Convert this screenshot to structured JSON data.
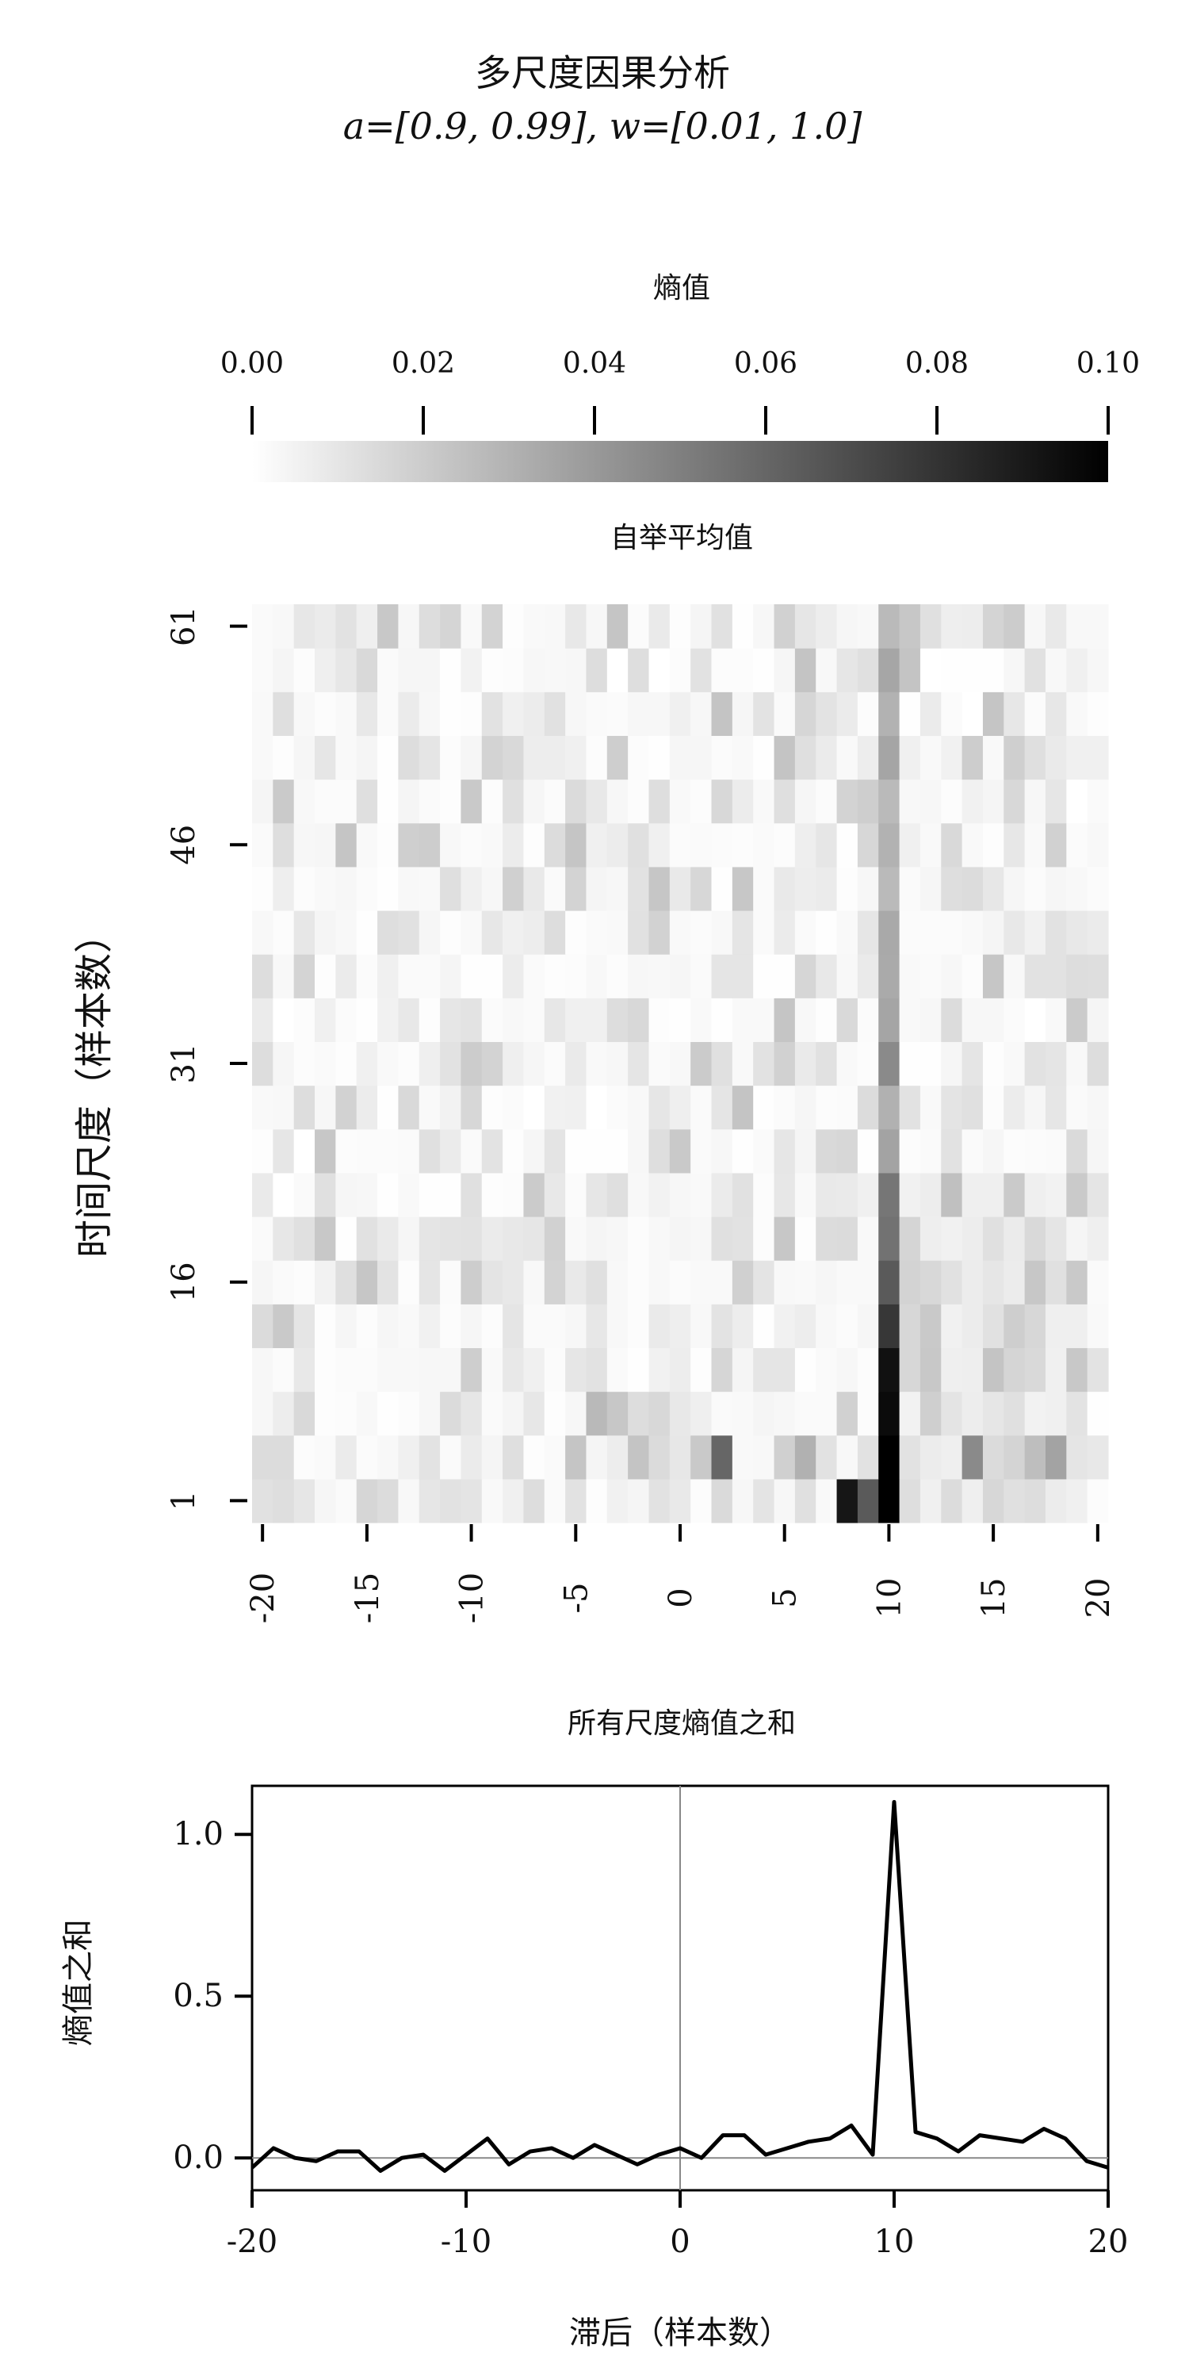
{
  "chart_data": [
    {
      "type": "heatmap",
      "title": "多尺度因果分析",
      "subtitle": "a=[0.9, 0.99], w=[0.01, 1.0]",
      "panel_title": "自举平均值",
      "xlabel": "",
      "ylabel": "时间尺度（样本数）",
      "x_range": [
        -20,
        20
      ],
      "y_range": [
        1,
        61
      ],
      "x_ticks": [
        "-20",
        "-15",
        "-10",
        "-5",
        "0",
        "5",
        "10",
        "15",
        "20"
      ],
      "y_ticks": [
        "1",
        "16",
        "31",
        "46",
        "61"
      ],
      "colorbar": {
        "label": "熵值",
        "min": 0.0,
        "max": 0.1,
        "ticks": [
          "0.00",
          "0.02",
          "0.04",
          "0.06",
          "0.08",
          "0.10"
        ],
        "location": "top",
        "colormap": "white-to-black"
      },
      "highlights": [
        {
          "lag": 10,
          "scale_band": 1,
          "value": 0.1
        },
        {
          "lag": 10,
          "scale_band": 2,
          "value": 0.1
        },
        {
          "lag": 10,
          "scale_band": 3,
          "value": 0.095
        },
        {
          "lag": 10,
          "scale_band": 4,
          "value": 0.092
        },
        {
          "lag": 10,
          "scale_band": 5,
          "value": 0.075
        },
        {
          "lag": 10,
          "scale_band": 6,
          "value": 0.06
        },
        {
          "lag": 10,
          "scale_band": 7,
          "value": 0.05
        },
        {
          "lag": 10,
          "scale_band": 8,
          "value": 0.048
        },
        {
          "lag": 10,
          "scale_band": 9,
          "value": 0.03
        },
        {
          "lag": 10,
          "scale_band": 10,
          "value": 0.025
        },
        {
          "lag": 10,
          "scale_band": 11,
          "value": 0.04
        },
        {
          "lag": 8,
          "scale_band": 1,
          "value": 0.09
        },
        {
          "lag": 9,
          "scale_band": 1,
          "value": 0.06
        },
        {
          "lag": 2,
          "scale_band": 2,
          "value": 0.055
        },
        {
          "lag": 14,
          "scale_band": 2,
          "value": 0.04
        },
        {
          "lag": 18,
          "scale_band": 2,
          "value": 0.03
        },
        {
          "lag": 6,
          "scale_band": 2,
          "value": 0.025
        },
        {
          "lag": -4,
          "scale_band": 3,
          "value": 0.022
        }
      ]
    },
    {
      "type": "line",
      "title": "所有尺度熵值之和",
      "xlabel": "滞后（样本数）",
      "ylabel": "熵值之和",
      "x": [
        -20,
        -19,
        -18,
        -17,
        -16,
        -15,
        -14,
        -13,
        -12,
        -11,
        -10,
        -9,
        -8,
        -7,
        -6,
        -5,
        -4,
        -3,
        -2,
        -1,
        0,
        1,
        2,
        3,
        4,
        5,
        6,
        7,
        8,
        9,
        10,
        11,
        12,
        13,
        14,
        15,
        16,
        17,
        18,
        19,
        20
      ],
      "series": [
        {
          "values": [
            -0.03,
            0.03,
            0.0,
            -0.01,
            0.02,
            0.02,
            -0.04,
            0.0,
            0.01,
            -0.04,
            0.01,
            0.06,
            -0.02,
            0.02,
            0.03,
            0.0,
            0.04,
            0.01,
            -0.02,
            0.01,
            0.03,
            0.0,
            0.07,
            0.07,
            0.01,
            0.03,
            0.05,
            0.06,
            0.1,
            0.01,
            1.1,
            0.08,
            0.06,
            0.02,
            0.07,
            0.06,
            0.05,
            0.09,
            0.06,
            -0.01,
            -0.03
          ]
        }
      ],
      "xlim": [
        -20,
        20
      ],
      "ylim": [
        -0.1,
        1.15
      ],
      "x_ticks": [
        "-20",
        "-10",
        "0",
        "10",
        "20"
      ],
      "y_ticks": [
        "0.0",
        "0.5",
        "1.0"
      ],
      "reference_lines": {
        "x": 0,
        "y": 0
      }
    }
  ]
}
